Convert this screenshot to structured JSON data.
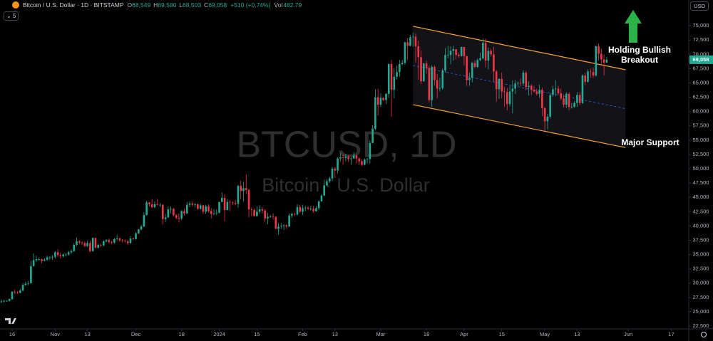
{
  "header": {
    "title": "Bitcoin / U.S. Dollar · 1D · BITSTAMP",
    "ohlc": [
      {
        "key": "O",
        "value": "68,549"
      },
      {
        "key": "H",
        "value": "69,580"
      },
      {
        "key": "L",
        "value": "68,503"
      },
      {
        "key": "C",
        "value": "69,058"
      }
    ],
    "change": "+510 (+0.74%)",
    "volume_key": "Vol",
    "volume": "482.79",
    "interval": "5",
    "currency": "USD"
  },
  "chart_data": {
    "type": "candlestick",
    "watermark": "BTCUSD, 1D",
    "watermark_subtitle": "Bitcoin · U.S. Dollar",
    "annotations": [
      "Holding Bullish",
      "Breakout",
      "Major Support"
    ],
    "last_price_label": "69,058",
    "up_color": "#22ab94",
    "down_color": "#f23645",
    "grid": false,
    "open": [
      26700,
      26800,
      26900,
      26900,
      27200,
      28500,
      28400,
      28300,
      28700,
      29700,
      29900,
      30000,
      33000,
      34000,
      34200,
      34200,
      33900,
      34100,
      34500,
      34500,
      34600,
      35400,
      34900,
      34700,
      35000,
      35000,
      35400,
      35600,
      36700,
      37300,
      37100,
      37000,
      36500,
      37000,
      35600,
      37900,
      36200,
      36700,
      36600,
      37300,
      37500,
      37200,
      37100,
      37700,
      37800,
      37500,
      37400,
      37300,
      37000,
      37800,
      37700,
      38700,
      39400,
      39900,
      41900,
      44100,
      43800,
      43300,
      43800,
      43700,
      43700,
      41200,
      41500,
      42900,
      43000,
      41900,
      41400,
      41300,
      42600,
      42200,
      43700,
      43900,
      43700,
      43800,
      43000,
      43600,
      42500,
      43400,
      42600,
      42100,
      42200,
      42300,
      44200,
      44900,
      42800,
      44200,
      44100,
      44000,
      43900,
      47000,
      46100,
      46600,
      46300,
      42900,
      42800,
      41700,
      42500,
      42900,
      42700,
      41300,
      41600,
      41700,
      41600,
      39500,
      39900,
      40000,
      40100,
      39900,
      41800,
      42100,
      42000,
      43300,
      42500,
      43100,
      43200,
      43000,
      43000,
      42600,
      43100,
      44300,
      45300,
      47100,
      47800,
      48300,
      50000,
      49700,
      51800,
      52000,
      51900,
      52100,
      51700,
      51800,
      52300,
      51800,
      51300,
      50700,
      51600,
      51700,
      54500,
      57000,
      62500,
      61200,
      62400,
      62000,
      63100,
      68300,
      63800,
      66100,
      66900,
      68300,
      68500,
      72100,
      71500,
      73000,
      73100,
      71400,
      69500,
      65300,
      68400,
      67600,
      62000,
      67800,
      65500,
      64000,
      64100,
      67200,
      69900,
      69900,
      70600,
      70900,
      69900,
      69700,
      71300,
      69700,
      65500,
      65900,
      68500,
      67800,
      69000,
      69300,
      72000,
      68900,
      70600,
      70000,
      67000,
      63900,
      65700,
      63500,
      63400,
      61300,
      63500,
      64000,
      64900,
      65000,
      64900,
      66800,
      64300,
      64500,
      63800,
      63500,
      63100,
      63800,
      60600,
      58300,
      59100,
      62900,
      63900,
      64000,
      63200,
      62300,
      61200,
      63100,
      60800,
      60800,
      61500,
      62900,
      61500,
      66300,
      65200,
      67000,
      66900,
      66300,
      71400,
      70100,
      69100,
      68549
    ],
    "high": [
      27100,
      27100,
      27000,
      27300,
      28600,
      28900,
      28600,
      29000,
      30000,
      30200,
      30400,
      33900,
      35200,
      34800,
      34500,
      34300,
      34400,
      34800,
      34700,
      34900,
      35600,
      35900,
      35300,
      35200,
      35300,
      35600,
      35900,
      37000,
      38000,
      37500,
      37300,
      37300,
      37400,
      37400,
      38000,
      37900,
      36900,
      36900,
      37500,
      37700,
      37800,
      37400,
      37900,
      38400,
      38000,
      37700,
      37600,
      37600,
      38200,
      38000,
      38900,
      39500,
      40200,
      42400,
      44400,
      44200,
      44700,
      44300,
      44700,
      44000,
      43800,
      42100,
      43400,
      43400,
      43100,
      42100,
      42200,
      42800,
      43000,
      44200,
      44300,
      44300,
      44000,
      43900,
      43900,
      43700,
      43700,
      43800,
      43100,
      42900,
      42900,
      44200,
      45900,
      45500,
      44700,
      44500,
      44300,
      44500,
      47200,
      47900,
      47700,
      49000,
      46500,
      43200,
      43000,
      43400,
      43600,
      43300,
      42900,
      42300,
      41900,
      42200,
      41700,
      40500,
      40500,
      40300,
      40300,
      42200,
      42300,
      42300,
      43800,
      43700,
      43700,
      43500,
      43500,
      43500,
      43500,
      43500,
      44500,
      45600,
      48100,
      48200,
      48600,
      50300,
      50300,
      52000,
      52800,
      52500,
      52600,
      52400,
      52000,
      52900,
      52500,
      52000,
      51600,
      51800,
      51900,
      54900,
      57600,
      63900,
      64000,
      63200,
      62500,
      63200,
      68400,
      69000,
      67600,
      68000,
      69000,
      69000,
      72200,
      72900,
      73400,
      73800,
      73600,
      72400,
      70700,
      68500,
      68900,
      68000,
      68100,
      68100,
      66600,
      65900,
      67500,
      71100,
      71500,
      71400,
      71500,
      70900,
      70300,
      71300,
      71300,
      69700,
      66800,
      68700,
      69000,
      69300,
      70300,
      72800,
      72800,
      71200,
      71000,
      71300,
      67300,
      65800,
      66800,
      64300,
      64100,
      64500,
      65400,
      65500,
      65300,
      65800,
      67200,
      67100,
      65300,
      64800,
      64500,
      64000,
      64700,
      64200,
      60800,
      59600,
      63300,
      64500,
      65500,
      64500,
      64000,
      63000,
      63400,
      63400,
      61500,
      61800,
      63400,
      63400,
      66500,
      66800,
      67400,
      67500,
      67700,
      71500,
      71900,
      71000,
      70000,
      69580
    ],
    "low": [
      26500,
      26600,
      26800,
      26800,
      27100,
      28100,
      28100,
      28200,
      28600,
      29500,
      29600,
      29900,
      32900,
      33700,
      33900,
      33500,
      33800,
      33900,
      34100,
      34100,
      34300,
      34600,
      34300,
      34500,
      34700,
      34800,
      35100,
      35500,
      36500,
      36800,
      36700,
      36300,
      36300,
      35400,
      35500,
      36000,
      36000,
      36300,
      36400,
      37100,
      36900,
      36800,
      36900,
      37400,
      37200,
      37100,
      37100,
      36700,
      36900,
      37500,
      37600,
      38600,
      39200,
      39800,
      41800,
      43400,
      43100,
      43100,
      43500,
      43300,
      40300,
      40700,
      41400,
      42200,
      41700,
      41200,
      40600,
      41000,
      41800,
      42100,
      43300,
      43400,
      43200,
      42800,
      42800,
      42100,
      42100,
      42300,
      41300,
      41900,
      41900,
      42200,
      44200,
      40800,
      42700,
      42600,
      43600,
      43600,
      43200,
      44700,
      44300,
      45600,
      41500,
      41700,
      41700,
      41700,
      42100,
      42200,
      40700,
      40300,
      41400,
      41100,
      39500,
      38500,
      39500,
      39300,
      39500,
      39800,
      41400,
      41700,
      41800,
      42300,
      41900,
      42600,
      42800,
      42700,
      42300,
      42500,
      42800,
      44300,
      45300,
      47000,
      47500,
      47800,
      48400,
      49200,
      51300,
      50700,
      51300,
      51200,
      50700,
      51700,
      50900,
      50600,
      50500,
      50600,
      50900,
      50900,
      54500,
      56700,
      59300,
      60800,
      61800,
      61300,
      62400,
      59100,
      62300,
      65600,
      66100,
      68100,
      68200,
      69000,
      71400,
      71300,
      68600,
      65600,
      64800,
      65200,
      66600,
      61600,
      60800,
      64500,
      62300,
      63500,
      63800,
      66800,
      69300,
      68300,
      68900,
      69100,
      69400,
      69600,
      68100,
      64500,
      64500,
      65100,
      67500,
      67600,
      68800,
      69100,
      67700,
      67400,
      69600,
      65300,
      61700,
      62200,
      62300,
      60800,
      60200,
      60900,
      59700,
      63100,
      64400,
      64400,
      64500,
      63700,
      62800,
      62900,
      63300,
      62800,
      62400,
      59200,
      56600,
      56900,
      58800,
      62600,
      62700,
      62900,
      62000,
      60700,
      60600,
      60200,
      60500,
      60700,
      60800,
      61100,
      61300,
      64600,
      65100,
      65900,
      65900,
      66100,
      68900,
      68300,
      66300,
      68503
    ],
    "close": [
      26800,
      26900,
      26900,
      27200,
      28500,
      28400,
      28300,
      28700,
      29700,
      29900,
      30000,
      33000,
      34000,
      34200,
      34200,
      33900,
      34100,
      34500,
      34500,
      34600,
      35400,
      34900,
      34700,
      35000,
      35000,
      35400,
      35600,
      36700,
      37300,
      37100,
      37000,
      36500,
      37000,
      35600,
      37900,
      36200,
      36700,
      36600,
      37300,
      37500,
      37200,
      37100,
      37700,
      37800,
      37500,
      37400,
      37300,
      37000,
      37800,
      37700,
      38700,
      39400,
      39900,
      41900,
      44100,
      43800,
      43300,
      43800,
      43700,
      43700,
      41200,
      41500,
      42900,
      43000,
      41900,
      41400,
      41300,
      42600,
      42200,
      43700,
      43900,
      43700,
      43800,
      43000,
      43600,
      42500,
      43400,
      42600,
      42100,
      42200,
      42300,
      44200,
      44900,
      42800,
      44200,
      44100,
      44000,
      43900,
      47000,
      46100,
      46600,
      46300,
      42900,
      42800,
      41700,
      42500,
      42900,
      42700,
      41300,
      41600,
      41700,
      41600,
      39500,
      39900,
      40000,
      40100,
      39900,
      41800,
      42100,
      42000,
      43300,
      42500,
      43100,
      43200,
      43000,
      43000,
      42600,
      43100,
      44300,
      45300,
      47100,
      47800,
      48300,
      50000,
      49700,
      51800,
      52000,
      51900,
      52100,
      51700,
      51800,
      52300,
      51800,
      51300,
      50700,
      51600,
      51700,
      54500,
      57000,
      62500,
      61200,
      62400,
      62000,
      63100,
      68300,
      63800,
      66100,
      66900,
      68300,
      68500,
      72100,
      71500,
      73000,
      73100,
      71400,
      69500,
      65300,
      68400,
      67600,
      62000,
      67800,
      65500,
      64000,
      64100,
      67200,
      69900,
      69900,
      70600,
      70900,
      69900,
      69700,
      71300,
      69700,
      65500,
      65900,
      68500,
      67800,
      69000,
      69300,
      72000,
      68900,
      70600,
      70000,
      67000,
      63900,
      65700,
      63500,
      63400,
      61300,
      63500,
      64000,
      64900,
      65000,
      64900,
      66800,
      64300,
      64500,
      63800,
      63500,
      63100,
      63800,
      60600,
      58300,
      59100,
      62900,
      63900,
      64000,
      63200,
      62300,
      61200,
      63100,
      60800,
      60800,
      61500,
      62900,
      61500,
      66300,
      65200,
      67000,
      66900,
      66300,
      71400,
      70100,
      69100,
      68549,
      69058
    ],
    "channel": {
      "color": "#f7a33a",
      "mid_color": "#2962ff",
      "x": [
        153,
        232
      ],
      "upper": [
        74900,
        67300
      ],
      "lower": [
        61200,
        53700
      ]
    },
    "xlim": [
      -0.5,
      255.5
    ],
    "xticks": [
      {
        "value": 4,
        "label": "16"
      },
      {
        "value": 20,
        "label": "Nov"
      },
      {
        "value": 32,
        "label": "13"
      },
      {
        "value": 50,
        "label": "Dec"
      },
      {
        "value": 67,
        "label": "18"
      },
      {
        "value": 81,
        "label": "2024"
      },
      {
        "value": 95,
        "label": "15"
      },
      {
        "value": 112,
        "label": "Feb"
      },
      {
        "value": 124,
        "label": "13"
      },
      {
        "value": 141,
        "label": "Mar"
      },
      {
        "value": 158,
        "label": "18"
      },
      {
        "value": 172,
        "label": "Apr"
      },
      {
        "value": 186,
        "label": "15"
      },
      {
        "value": 202,
        "label": "May"
      },
      {
        "value": 214,
        "label": "13"
      },
      {
        "value": 233,
        "label": "Jun"
      },
      {
        "value": 249,
        "label": "17"
      }
    ],
    "ylim": [
      22000,
      79500
    ],
    "yticks": [
      {
        "value": 22500,
        "label": "22,500"
      },
      {
        "value": 25000,
        "label": "25,000"
      },
      {
        "value": 27500,
        "label": "27,500"
      },
      {
        "value": 30000,
        "label": "30,000"
      },
      {
        "value": 32500,
        "label": "32,500"
      },
      {
        "value": 35000,
        "label": "35,000"
      },
      {
        "value": 37500,
        "label": "37,500"
      },
      {
        "value": 40000,
        "label": "40,000"
      },
      {
        "value": 42500,
        "label": "42,500"
      },
      {
        "value": 45000,
        "label": "45,000"
      },
      {
        "value": 47500,
        "label": "47,500"
      },
      {
        "value": 50000,
        "label": "50,000"
      },
      {
        "value": 52500,
        "label": "52,500"
      },
      {
        "value": 55000,
        "label": "55,000"
      },
      {
        "value": 57500,
        "label": "57,500"
      },
      {
        "value": 60000,
        "label": "60,000"
      },
      {
        "value": 62500,
        "label": "62,500"
      },
      {
        "value": 65000,
        "label": "65,000"
      },
      {
        "value": 67500,
        "label": "67,500"
      },
      {
        "value": 70000,
        "label": "70,000"
      },
      {
        "value": 72500,
        "label": "72,500"
      },
      {
        "value": 75000,
        "label": "75,000"
      }
    ]
  }
}
